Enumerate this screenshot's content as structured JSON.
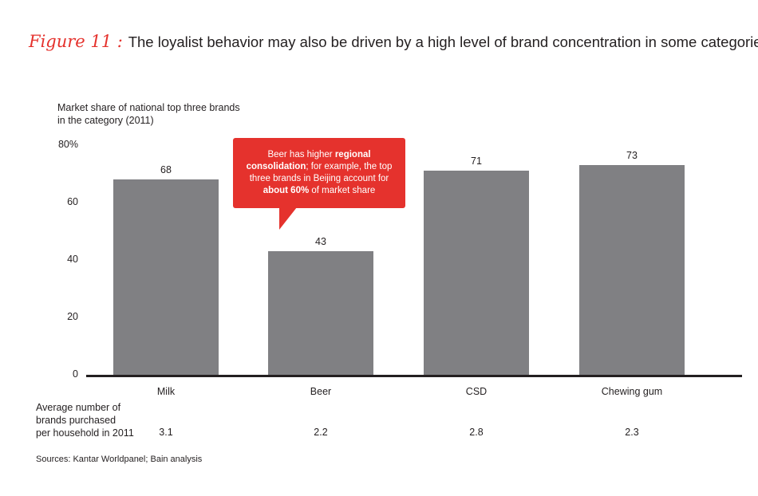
{
  "title": {
    "figure_label": "Figure 11 :",
    "text": "The loyalist behavior may also be driven by a high level of brand concentration in some categories"
  },
  "chart_data": {
    "type": "bar",
    "ylabel_line1": "Market share of national top three brands",
    "ylabel_line2": "in the category (2011)",
    "categories": [
      "Milk",
      "Beer",
      "CSD",
      "Chewing gum"
    ],
    "values": [
      68,
      43,
      71,
      73
    ],
    "value_labels": [
      "68",
      "43",
      "71",
      "73"
    ],
    "yticks": [
      "80%",
      "60",
      "40",
      "20",
      "0"
    ],
    "ylim": [
      0,
      80
    ],
    "grid": false,
    "bar_color": "#808083"
  },
  "callout": {
    "part1": "Beer has higher ",
    "bold1": "regional consolidation",
    "part2": "; for example, the top three brands in Beijing account for ",
    "bold2": "about 60%",
    "part3": " of market share",
    "color": "#e5322d"
  },
  "average_row": {
    "label_line1": "Average number of",
    "label_line2": "brands purchased",
    "label_line3": "per household in 2011",
    "values": [
      "3.1",
      "2.2",
      "2.8",
      "2.3"
    ]
  },
  "source": "Sources: Kantar Worldpanel; Bain analysis"
}
